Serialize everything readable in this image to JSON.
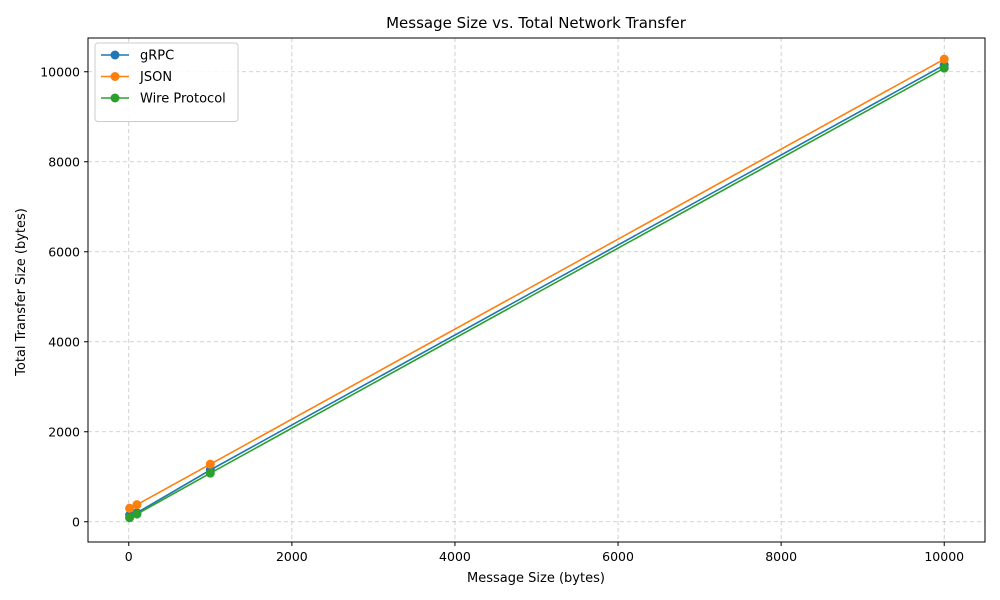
{
  "chart_data": {
    "type": "line",
    "title": "Message Size vs. Total Network Transfer",
    "xlabel": "Message Size (bytes)",
    "ylabel": "Total Transfer Size (bytes)",
    "xlim": [
      -500,
      10500
    ],
    "ylim": [
      -450,
      10750
    ],
    "xticks": [
      0,
      2000,
      4000,
      6000,
      8000,
      10000
    ],
    "yticks": [
      0,
      2000,
      4000,
      6000,
      8000,
      10000
    ],
    "grid": true,
    "legend_position": "top-left",
    "series": [
      {
        "name": "gRPC",
        "color": "#1f77b4",
        "marker": "circle",
        "points": [
          [
            10,
            150
          ],
          [
            100,
            200
          ],
          [
            1000,
            1150
          ],
          [
            10000,
            10150
          ]
        ]
      },
      {
        "name": "JSON",
        "color": "#ff7f0e",
        "marker": "circle",
        "points": [
          [
            10,
            300
          ],
          [
            100,
            380
          ],
          [
            1000,
            1280
          ],
          [
            10000,
            10280
          ]
        ]
      },
      {
        "name": "Wire Protocol",
        "color": "#2ca02c",
        "marker": "circle",
        "points": [
          [
            10,
            90
          ],
          [
            100,
            170
          ],
          [
            1000,
            1080
          ],
          [
            10000,
            10080
          ]
        ]
      }
    ]
  }
}
